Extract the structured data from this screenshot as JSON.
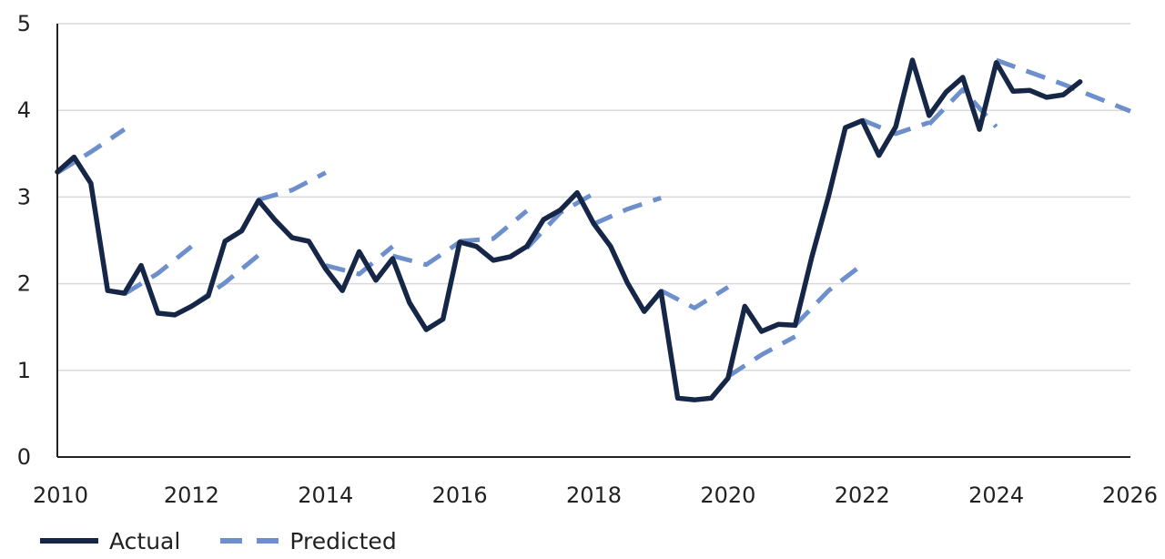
{
  "chart_data": {
    "type": "line",
    "title": "",
    "xlabel": "",
    "ylabel": "",
    "xlim": [
      2010,
      2026
    ],
    "ylim": [
      0,
      5
    ],
    "x_ticks": [
      2010,
      2012,
      2014,
      2016,
      2018,
      2020,
      2022,
      2024,
      2026
    ],
    "y_ticks": [
      0,
      1,
      2,
      3,
      4,
      5
    ],
    "grid": "horizontal",
    "legend": "bottom-left",
    "colors": {
      "actual": "#152647",
      "predicted": "#6d8fcb",
      "grid": "#d9d9d9",
      "axis": "#222222"
    },
    "series": [
      {
        "name": "Actual",
        "style": "solid",
        "segments": [
          [
            [
              2010.0,
              3.29
            ],
            [
              2010.25,
              3.46
            ],
            [
              2010.5,
              3.16
            ],
            [
              2010.75,
              1.92
            ],
            [
              2011.0,
              1.89
            ],
            [
              2011.25,
              2.21
            ],
            [
              2011.5,
              1.66
            ],
            [
              2011.75,
              1.64
            ],
            [
              2012.0,
              1.74
            ],
            [
              2012.25,
              1.86
            ],
            [
              2012.5,
              2.49
            ],
            [
              2012.75,
              2.61
            ],
            [
              2013.0,
              2.96
            ],
            [
              2013.25,
              2.73
            ],
            [
              2013.5,
              2.53
            ],
            [
              2013.75,
              2.49
            ],
            [
              2014.0,
              2.17
            ],
            [
              2014.25,
              1.92
            ],
            [
              2014.5,
              2.37
            ],
            [
              2014.75,
              2.04
            ],
            [
              2015.0,
              2.29
            ],
            [
              2015.25,
              1.78
            ],
            [
              2015.5,
              1.47
            ],
            [
              2015.75,
              1.59
            ],
            [
              2016.0,
              2.48
            ],
            [
              2016.25,
              2.43
            ],
            [
              2016.5,
              2.27
            ],
            [
              2016.75,
              2.31
            ],
            [
              2017.0,
              2.43
            ],
            [
              2017.25,
              2.74
            ],
            [
              2017.5,
              2.85
            ],
            [
              2017.75,
              3.05
            ],
            [
              2018.0,
              2.69
            ],
            [
              2018.25,
              2.43
            ],
            [
              2018.5,
              2.01
            ],
            [
              2018.75,
              1.68
            ],
            [
              2019.0,
              1.91
            ],
            [
              2019.25,
              0.68
            ],
            [
              2019.5,
              0.66
            ],
            [
              2019.75,
              0.68
            ],
            [
              2020.0,
              0.91
            ],
            [
              2020.25,
              1.74
            ],
            [
              2020.5,
              1.45
            ],
            [
              2020.75,
              1.53
            ],
            [
              2021.0,
              1.52
            ],
            [
              2021.25,
              2.31
            ],
            [
              2021.5,
              3.01
            ],
            [
              2021.75,
              3.8
            ],
            [
              2022.0,
              3.88
            ],
            [
              2022.25,
              3.48
            ],
            [
              2022.5,
              3.81
            ],
            [
              2022.75,
              4.58
            ],
            [
              2023.0,
              3.94
            ],
            [
              2023.25,
              4.21
            ],
            [
              2023.5,
              4.38
            ],
            [
              2023.75,
              3.78
            ],
            [
              2024.0,
              4.55
            ],
            [
              2024.25,
              4.22
            ],
            [
              2024.5,
              4.23
            ],
            [
              2024.75,
              4.15
            ],
            [
              2025.0,
              4.18
            ],
            [
              2025.25,
              4.33
            ]
          ]
        ]
      },
      {
        "name": "Predicted",
        "style": "dashed",
        "segments": [
          [
            [
              2010.0,
              3.28
            ],
            [
              2010.5,
              3.52
            ],
            [
              2011.0,
              3.78
            ]
          ],
          [
            [
              2011.0,
              1.88
            ],
            [
              2011.5,
              2.12
            ],
            [
              2012.0,
              2.43
            ]
          ],
          [
            [
              2012.0,
              1.74
            ],
            [
              2012.5,
              2.01
            ],
            [
              2013.0,
              2.33
            ]
          ],
          [
            [
              2013.0,
              2.97
            ],
            [
              2013.5,
              3.08
            ],
            [
              2014.0,
              3.28
            ]
          ],
          [
            [
              2014.0,
              2.21
            ],
            [
              2014.5,
              2.11
            ],
            [
              2015.0,
              2.43
            ]
          ],
          [
            [
              2015.0,
              2.32
            ],
            [
              2015.5,
              2.22
            ],
            [
              2016.0,
              2.48
            ]
          ],
          [
            [
              2016.0,
              2.49
            ],
            [
              2016.5,
              2.52
            ],
            [
              2017.0,
              2.84
            ]
          ],
          [
            [
              2017.0,
              2.41
            ],
            [
              2017.5,
              2.82
            ],
            [
              2018.0,
              3.04
            ]
          ],
          [
            [
              2018.0,
              2.69
            ],
            [
              2018.5,
              2.86
            ],
            [
              2019.0,
              2.99
            ]
          ],
          [
            [
              2019.0,
              1.92
            ],
            [
              2019.5,
              1.72
            ],
            [
              2020.0,
              1.96
            ]
          ],
          [
            [
              2020.0,
              0.93
            ],
            [
              2020.5,
              1.18
            ],
            [
              2021.0,
              1.39
            ]
          ],
          [
            [
              2021.0,
              1.52
            ],
            [
              2021.5,
              1.92
            ],
            [
              2022.0,
              2.22
            ]
          ],
          [
            [
              2022.0,
              3.89
            ],
            [
              2022.5,
              3.73
            ],
            [
              2023.0,
              3.86
            ]
          ],
          [
            [
              2023.0,
              3.84
            ],
            [
              2023.5,
              4.24
            ],
            [
              2024.0,
              3.81
            ]
          ],
          [
            [
              2024.0,
              4.58
            ],
            [
              2025.0,
              4.3
            ],
            [
              2026.0,
              3.99
            ]
          ]
        ]
      }
    ]
  }
}
